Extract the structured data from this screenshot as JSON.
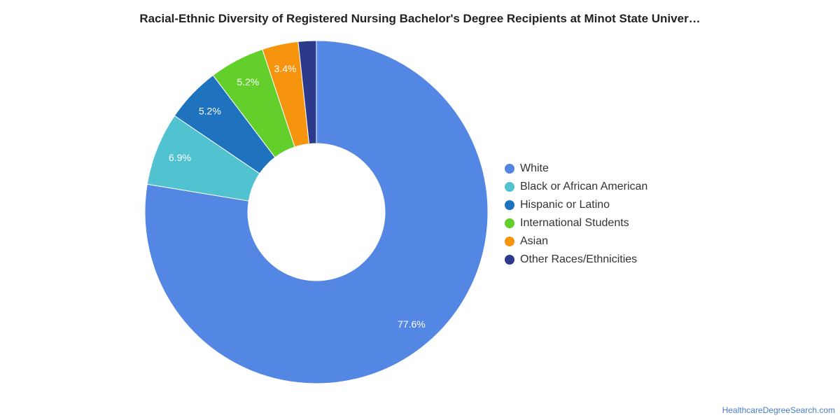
{
  "chart_data": {
    "type": "pie",
    "title": "Racial-Ethnic Diversity of Registered Nursing Bachelor's Degree Recipients at Minot State Univer…",
    "donut": true,
    "legend_position": "right",
    "slices": [
      {
        "name": "White",
        "value": 77.6,
        "label": "77.6%",
        "color": "#5486e3"
      },
      {
        "name": "Black or African American",
        "value": 6.9,
        "label": "6.9%",
        "color": "#51c2d0"
      },
      {
        "name": "Hispanic or Latino",
        "value": 5.2,
        "label": "5.2%",
        "color": "#1f72bd"
      },
      {
        "name": "International Students",
        "value": 5.2,
        "label": "5.2%",
        "color": "#63cf2a"
      },
      {
        "name": "Asian",
        "value": 3.4,
        "label": "3.4%",
        "color": "#f7940d"
      },
      {
        "name": "Other Races/Ethnicities",
        "value": 1.7,
        "label": "",
        "color": "#2c3a8c"
      }
    ]
  },
  "footer": {
    "source": "HealthcareDegreeSearch.com"
  }
}
